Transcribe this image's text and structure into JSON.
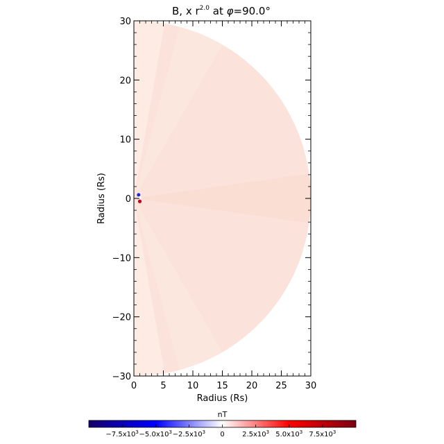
{
  "chart_data": {
    "type": "heatmap",
    "title": "B, x r",
    "title_superscript": "2.0",
    "title_suffix": " at ",
    "title_phi_symbol": "φ",
    "title_angle": "=90.0°",
    "xlabel": "Radius (Rs)",
    "ylabel": "Radius (Rs)",
    "xlim": [
      0,
      30
    ],
    "ylim": [
      -30,
      30
    ],
    "xticks": [
      0,
      5,
      10,
      15,
      20,
      25,
      30
    ],
    "yticks": [
      -30,
      -20,
      -10,
      0,
      10,
      20,
      30
    ],
    "xtick_labels": [
      "0",
      "5",
      "10",
      "15",
      "20",
      "25",
      "30"
    ],
    "ytick_labels": [
      "−30",
      "−20",
      "−10",
      "0",
      "10",
      "20",
      "30"
    ],
    "domain_radius_max": 30,
    "background_field_color": "#fbe3db",
    "colorbar": {
      "label": "nT",
      "range": [
        -10000,
        10000
      ],
      "colors": [
        "#15006b",
        "#0000ff",
        "#ffffff",
        "#ff0000",
        "#7b0011"
      ],
      "ticks": [
        {
          "value": -7500,
          "mantissa": "−7.5",
          "exp": "3"
        },
        {
          "value": -5000,
          "mantissa": "−5.0",
          "exp": "3"
        },
        {
          "value": -2500,
          "mantissa": "−2.5",
          "exp": "3"
        },
        {
          "value": 0,
          "mantissa": "0",
          "exp": ""
        },
        {
          "value": 2500,
          "mantissa": "2.5",
          "exp": "3"
        },
        {
          "value": 5000,
          "mantissa": "5.0",
          "exp": "3"
        },
        {
          "value": 7500,
          "mantissa": "7.5",
          "exp": "3"
        }
      ],
      "tick_prefix": "x10"
    }
  }
}
